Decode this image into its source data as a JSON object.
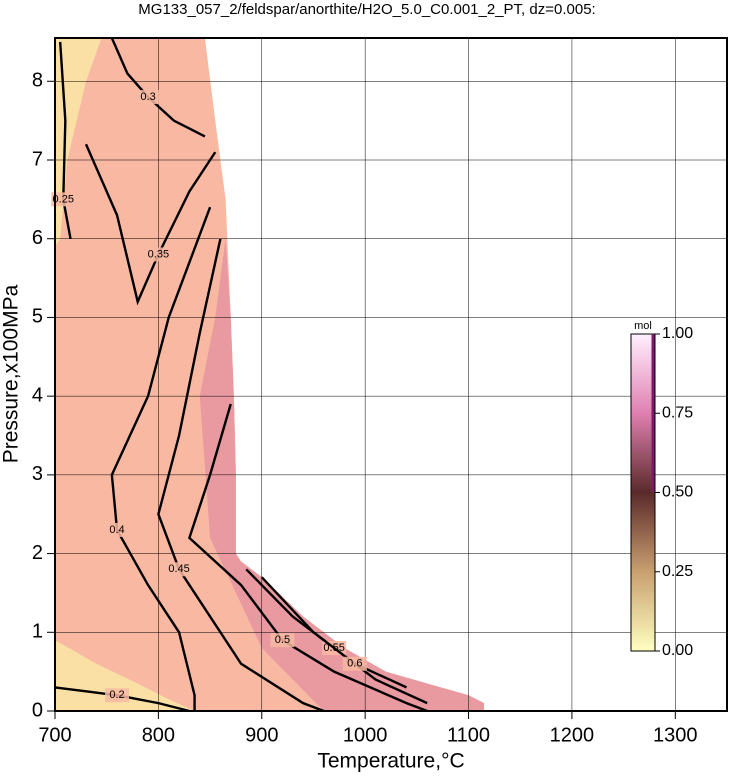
{
  "chart_data": {
    "type": "contour",
    "title": "MG133_057_2/feldspar/anorthite/H2O_5.0_C0.001_2_PT, dz=0.005:",
    "x_label": "Temperature,°C",
    "y_label": "Pressure,x100MPa",
    "xlim": [
      700,
      1350
    ],
    "ylim": [
      0,
      8.55
    ],
    "xticks": [
      700,
      800,
      900,
      1000,
      1100,
      1200,
      1300
    ],
    "yticks": [
      0,
      1,
      2,
      3,
      4,
      5,
      6,
      7,
      8
    ],
    "grid": true,
    "line_color": "#000000",
    "regions": [
      {
        "color": "#f8b8a2",
        "x": [
          700,
          700,
          845,
          855,
          865,
          870,
          873,
          875,
          875,
          880,
          900,
          940,
          980,
          1020,
          1060,
          1100,
          1115,
          1115
        ],
        "y": [
          0,
          8.55,
          8.55,
          7.5,
          6.5,
          5,
          4,
          3,
          2,
          1.9,
          1.7,
          1.2,
          0.8,
          0.5,
          0.35,
          0.2,
          0.1,
          0
        ]
      },
      {
        "color": "#e99aa0",
        "x": [
          840,
          855,
          865,
          870,
          873,
          875,
          875,
          880,
          900,
          940,
          980,
          1020,
          1060,
          1100,
          1115,
          1115,
          960,
          900,
          850
        ],
        "y": [
          4.0,
          5.0,
          6.0,
          5.0,
          4.0,
          3.0,
          2.0,
          1.9,
          1.7,
          1.2,
          0.8,
          0.5,
          0.35,
          0.2,
          0.1,
          0,
          0,
          0.8,
          2.2
        ]
      },
      {
        "color": "#fbe0a6",
        "x": [
          700,
          700,
          745,
          730,
          712,
          705
        ],
        "y": [
          5.9,
          8.55,
          8.55,
          8.0,
          7.0,
          6.0
        ]
      },
      {
        "color": "#fbe0a6",
        "x": [
          700,
          700,
          740,
          780,
          810,
          835
        ],
        "y": [
          0,
          0.9,
          0.6,
          0.35,
          0.15,
          0
        ]
      }
    ],
    "series": [
      {
        "level": 0.2,
        "x": [
          700,
          730,
          760,
          800,
          830
        ],
        "y": [
          0.3,
          0.25,
          0.2,
          0.1,
          0
        ]
      },
      {
        "level": 0.25,
        "x": [
          705,
          710,
          708,
          715
        ],
        "y": [
          8.5,
          7.5,
          6.5,
          6.0
        ]
      },
      {
        "level": 0.3,
        "x": [
          755,
          770,
          790,
          815,
          845
        ],
        "y": [
          8.55,
          8.1,
          7.8,
          7.5,
          7.3
        ]
      },
      {
        "level": 0.35,
        "x": [
          730,
          760,
          780,
          800,
          830,
          855
        ],
        "y": [
          7.2,
          6.3,
          5.2,
          5.8,
          6.6,
          7.1
        ]
      },
      {
        "level": 0.4,
        "x": [
          850,
          810,
          790,
          755,
          760,
          790,
          820,
          835,
          835
        ],
        "y": [
          6.4,
          5.0,
          4.0,
          3.0,
          2.3,
          1.6,
          1.0,
          0.2,
          0
        ]
      },
      {
        "level": 0.45,
        "x": [
          860,
          840,
          820,
          800,
          820,
          850,
          880,
          940,
          960
        ],
        "y": [
          6.0,
          4.8,
          3.5,
          2.5,
          1.8,
          1.2,
          0.6,
          0.1,
          0
        ]
      },
      {
        "level": 0.5,
        "x": [
          870,
          850,
          830,
          880,
          920,
          970,
          1040,
          1060
        ],
        "y": [
          3.9,
          3.0,
          2.2,
          1.6,
          0.9,
          0.5,
          0.1,
          0
        ]
      },
      {
        "level": 0.55,
        "x": [
          885,
          930,
          970,
          1010,
          1060
        ],
        "y": [
          1.8,
          1.2,
          0.8,
          0.4,
          0.1
        ]
      },
      {
        "level": 0.6,
        "x": [
          900,
          950,
          990,
          1040
        ],
        "y": [
          1.7,
          1.0,
          0.6,
          0.3
        ]
      }
    ],
    "colorbar": {
      "label": "mol",
      "lim": [
        0,
        1
      ],
      "ticks": [
        {
          "value": 0,
          "label": "0.00"
        },
        {
          "value": 0.25,
          "label": "0.25"
        },
        {
          "value": 0.5,
          "label": "0.50"
        },
        {
          "value": 0.75,
          "label": "0.75"
        },
        {
          "value": 1,
          "label": "1.00"
        }
      ],
      "colors": [
        "#ffffc0",
        "#c8a070",
        "#5a2a2a",
        "#e080b0",
        "#fff0ff"
      ]
    }
  }
}
